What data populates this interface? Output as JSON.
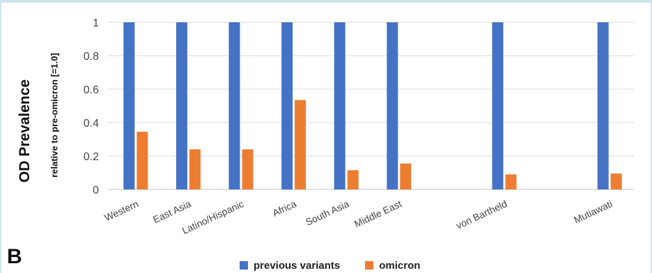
{
  "panel_label": "B",
  "chart_data": {
    "type": "bar",
    "ylabel": "OD Prevalence",
    "ylabel_sub": "relative to pre-omicron [=1.0]",
    "ylim": [
      0,
      1
    ],
    "yticks": [
      "0",
      "0.2",
      "0.4",
      "0.6",
      "0.8",
      "1"
    ],
    "ytick_values": [
      0,
      0.2,
      0.4,
      0.6,
      0.8,
      1
    ],
    "grid": true,
    "legend_position": "bottom",
    "categories": [
      "Western",
      "East Asia",
      "Latino/Hispanic",
      "Africa",
      "South Asia",
      "Middle East",
      "",
      "von Bartheld",
      "",
      "Mutiawati"
    ],
    "series": [
      {
        "name": "previous variants",
        "color": "#4472c4",
        "values": [
          1,
          1,
          1,
          1,
          1,
          1,
          null,
          1,
          null,
          1
        ]
      },
      {
        "name": "omicron",
        "color": "#ed7d31",
        "values": [
          0.345,
          0.24,
          0.24,
          0.535,
          0.115,
          0.155,
          null,
          0.09,
          null,
          0.095
        ]
      }
    ]
  }
}
